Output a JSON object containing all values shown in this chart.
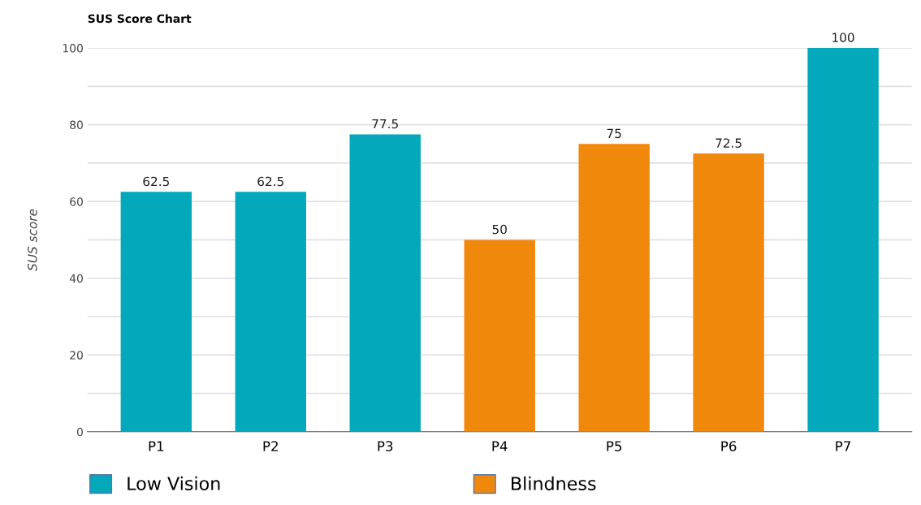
{
  "chart_data": {
    "type": "bar",
    "title": "SUS Score Chart",
    "ylabel": "SUS score",
    "categories": [
      "P1",
      "P2",
      "P3",
      "P4",
      "P5",
      "P6",
      "P7"
    ],
    "series": [
      {
        "name": "Low Vision",
        "color": "#03a9ba",
        "values": [
          62.5,
          62.5,
          77.5,
          null,
          null,
          null,
          100
        ]
      },
      {
        "name": "Blindness",
        "color": "#f0880c",
        "values": [
          null,
          null,
          null,
          50,
          75,
          72.5,
          null
        ]
      }
    ],
    "data_labels": true,
    "ylim": [
      0,
      100
    ],
    "yticks": [
      0,
      {
        "value": 10,
        "label": null
      },
      20,
      {
        "value": 30,
        "label": null
      },
      40,
      {
        "value": 50,
        "label": null
      },
      60,
      {
        "value": 70,
        "label": null
      },
      80,
      {
        "value": 90,
        "label": null
      },
      100
    ],
    "grid": "y",
    "legend": "bottom"
  }
}
